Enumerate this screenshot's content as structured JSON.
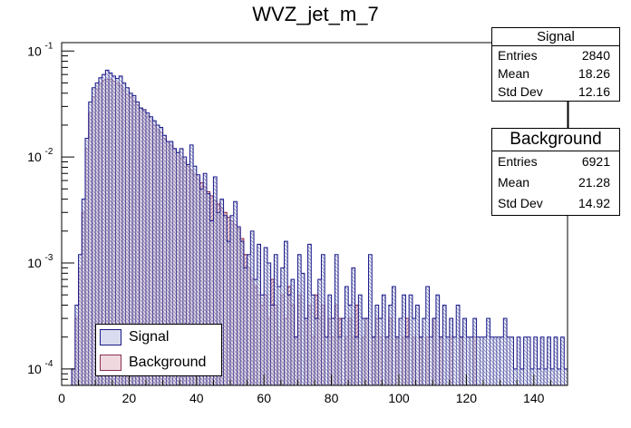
{
  "chart_data": {
    "type": "histogram",
    "title": "WVZ_jet_m_7",
    "xlabel": "",
    "ylabel": "",
    "xlim": [
      0,
      150
    ],
    "ylim": [
      7e-05,
      0.12
    ],
    "yscale": "log",
    "bin_width": 1,
    "x_ticks": [
      "0",
      "20",
      "40",
      "60",
      "80",
      "100",
      "120",
      "140"
    ],
    "y_ticks": [
      {
        "value": 0.1,
        "mantissa": "10",
        "exponent": "-1"
      },
      {
        "value": 0.01,
        "mantissa": "10",
        "exponent": "-2"
      },
      {
        "value": 0.001,
        "mantissa": "10",
        "exponent": "-3"
      },
      {
        "value": 0.0001,
        "mantissa": "10",
        "exponent": "-4"
      }
    ],
    "colors": {
      "signal_line": "#1a1a8a",
      "signal_fill": "#d9dcee",
      "background_line": "#8a3050",
      "background_fill": "#efd9df"
    },
    "legend": [
      {
        "name": "Signal"
      },
      {
        "name": "Background"
      }
    ],
    "series": [
      {
        "name": "Background",
        "values": [
          0,
          0,
          0,
          0.0001,
          0.0003,
          0.0009,
          0.003,
          0.012,
          0.026,
          0.037,
          0.044,
          0.049,
          0.053,
          0.054,
          0.054,
          0.052,
          0.05,
          0.047,
          0.043,
          0.039,
          0.037,
          0.034,
          0.031,
          0.029,
          0.027,
          0.024,
          0.022,
          0.02,
          0.018,
          0.017,
          0.015,
          0.014,
          0.013,
          0.012,
          0.011,
          0.0098,
          0.009,
          0.0082,
          0.0075,
          0.0068,
          0.0062,
          0.0057,
          0.0052,
          0.0047,
          0.0043,
          0.0039,
          0.0036,
          0.0033,
          0.003,
          0.0027,
          0.0025,
          0.0023,
          0.0021,
          0.0017,
          0.0012,
          0.0009,
          0.0007,
          0.0006,
          0.0005,
          0.0004,
          0.0005,
          0.0003,
          0.0007,
          0.0004,
          0.0002,
          0.0005,
          0.0003,
          0.0006,
          0.0004,
          0.0002,
          0.0005,
          0,
          0.0003,
          0.0004,
          0.0002,
          0.0005,
          0.0003,
          0.0004,
          0,
          0.0003,
          0.0002,
          0.0004,
          0.0003,
          0,
          0.0002,
          0.0003,
          0.0002,
          0.0004,
          0,
          0.0002,
          0.0003,
          0,
          0.0002,
          0.0003,
          0.0002,
          0,
          0.0002,
          0.0003,
          0,
          0.0002,
          0,
          0.0002,
          0.0003,
          0,
          0.0002,
          0,
          0.0002,
          0,
          0.0002,
          0,
          0.0003,
          0,
          0.0002,
          0,
          0,
          0.0002,
          0,
          0,
          0.0002,
          0,
          0,
          0,
          0.0002,
          0,
          0,
          0,
          0,
          0,
          0,
          0,
          0,
          0,
          0,
          0,
          0,
          0,
          0,
          0,
          0,
          0,
          0,
          0,
          0,
          0,
          0,
          0,
          0,
          0,
          0,
          0,
          0,
          0
        ]
      },
      {
        "name": "Signal",
        "values": [
          0,
          0,
          0,
          0.0001,
          0.0004,
          0.0012,
          0.004,
          0.015,
          0.033,
          0.045,
          0.05,
          0.056,
          0.06,
          0.066,
          0.062,
          0.058,
          0.055,
          0.058,
          0.05,
          0.045,
          0.04,
          0.038,
          0.033,
          0.029,
          0.028,
          0.026,
          0.024,
          0.022,
          0.02,
          0.019,
          0.016,
          0.014,
          0.014,
          0.012,
          0.011,
          0.012,
          0.01,
          0.0085,
          0.013,
          0.0082,
          0.0068,
          0.005,
          0.007,
          0.0045,
          0.0025,
          0.0065,
          0.003,
          0.004,
          0.0028,
          0.0016,
          0.0028,
          0.0038,
          0.0022,
          0.0016,
          0.0009,
          0.0012,
          0.002,
          0.0007,
          0.0015,
          0.0005,
          0.0014,
          0.001,
          0.0004,
          0.0012,
          0.0006,
          0.0009,
          0.0016,
          0.0005,
          0.0007,
          0.0002,
          0.0012,
          0.0008,
          0.0003,
          0.0015,
          0.0005,
          0.0003,
          0.0007,
          0.0012,
          0.0002,
          0.0005,
          0.0003,
          0.0012,
          0.0002,
          0.0003,
          0.0006,
          0.0004,
          0.0009,
          0.0002,
          0.0005,
          0.0003,
          0.0003,
          0.0012,
          0.0002,
          0.0004,
          0.0003,
          0.0005,
          0.0002,
          0.0004,
          0.0006,
          0.0002,
          0.0003,
          0.0005,
          0.0002,
          0.0005,
          0.0003,
          0.0004,
          0.0002,
          0.0003,
          0.0006,
          0.0002,
          0.0003,
          0.0005,
          0.0002,
          0.0004,
          0.0002,
          0.0003,
          0.0002,
          0.0004,
          0.0002,
          0.0003,
          0.0002,
          0.0002,
          0.0003,
          0.0002,
          0.0002,
          0.0002,
          0.0003,
          0.0002,
          0.0002,
          0.0002,
          0.0002,
          0.0003,
          0.0002,
          0.0002,
          0.0001,
          0.0002,
          0.0001,
          0.0002,
          0.0002,
          0.0001,
          0.0002,
          0.0001,
          0.0002,
          0.0001,
          0.0002,
          0.0001,
          0.0002,
          0.0001,
          0.0002,
          0.0001
        ]
      }
    ]
  },
  "stats": {
    "signal": {
      "title": "Signal",
      "rows": [
        {
          "label": "Entries",
          "value": "2840"
        },
        {
          "label": "Mean",
          "value": "18.26"
        },
        {
          "label": "Std Dev",
          "value": "12.16"
        }
      ]
    },
    "background": {
      "title": "Background",
      "rows": [
        {
          "label": "Entries",
          "value": "6921"
        },
        {
          "label": "Mean",
          "value": "21.28"
        },
        {
          "label": "Std Dev",
          "value": "14.92"
        }
      ]
    }
  }
}
